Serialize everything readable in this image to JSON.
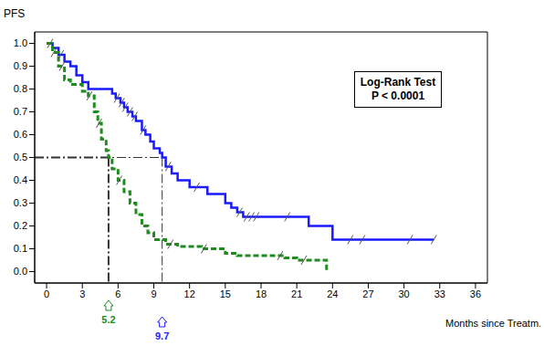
{
  "chart_data": {
    "type": "line",
    "x_label": "Months since Treatm.",
    "y_label": "PFS",
    "annotation": [
      "Log-Rank Test",
      "P < 0.0001"
    ],
    "xlim": [
      -1,
      37
    ],
    "xticks": [
      0,
      3,
      6,
      9,
      12,
      15,
      18,
      21,
      24,
      27,
      30,
      33,
      36
    ],
    "ylim": [
      -0.05,
      1.05
    ],
    "yticks": [
      {
        "value": 0,
        "label": "0.0"
      },
      0.1,
      0.2,
      0.3,
      0.4,
      0.5,
      0.6,
      0.7,
      0.8,
      0.9,
      {
        "value": 1,
        "label": "1.0"
      }
    ],
    "median_y": 0.5,
    "series": [
      {
        "color": "#1a1aff",
        "line_style": "solid",
        "marker": "tick",
        "median": 9.7,
        "x": [
          0,
          0.5,
          1,
          1.5,
          2,
          2.5,
          3,
          3.5,
          5.5,
          5.8,
          6.2,
          6.5,
          6.8,
          7.2,
          7.5,
          8,
          8.3,
          8.7,
          9,
          9.5,
          9.7,
          10,
          10.5,
          11,
          12,
          13.5,
          15,
          15.5,
          16,
          16.5,
          22,
          24,
          32.5
        ],
        "values": [
          1.0,
          0.98,
          0.95,
          0.92,
          0.9,
          0.86,
          0.83,
          0.8,
          0.78,
          0.76,
          0.74,
          0.72,
          0.7,
          0.68,
          0.66,
          0.62,
          0.6,
          0.57,
          0.54,
          0.52,
          0.5,
          0.46,
          0.43,
          0.4,
          0.37,
          0.34,
          0.3,
          0.28,
          0.26,
          0.24,
          0.2,
          0.14,
          0.14
        ],
        "censored_x": [
          0.3,
          1.2,
          5.9,
          6.3,
          6.6,
          7.0,
          7.4,
          8.1,
          10.2,
          12.6,
          16.2,
          16.8,
          17.2,
          17.6,
          20.2,
          25.5,
          26.5,
          30.5,
          32.5
        ]
      },
      {
        "color": "#1e8c1e",
        "line_style": "dashed",
        "marker": "tick",
        "median": 5.2,
        "x": [
          0,
          0.5,
          1,
          1.5,
          2,
          3,
          3.5,
          4,
          4.3,
          4.6,
          5,
          5.2,
          5.5,
          6,
          6.5,
          7,
          7.5,
          8,
          8.5,
          9,
          10,
          11,
          13,
          15,
          16,
          20,
          21,
          23.5
        ],
        "values": [
          1.0,
          0.96,
          0.9,
          0.84,
          0.82,
          0.79,
          0.77,
          0.7,
          0.65,
          0.58,
          0.53,
          0.5,
          0.45,
          0.4,
          0.35,
          0.3,
          0.25,
          0.2,
          0.17,
          0.14,
          0.12,
          0.11,
          0.1,
          0.08,
          0.07,
          0.06,
          0.05,
          0.0
        ],
        "censored_x": [
          0.6,
          1.3,
          3.6,
          4.4,
          6.1,
          10.4,
          13.2,
          19.6,
          21.6
        ]
      }
    ]
  }
}
